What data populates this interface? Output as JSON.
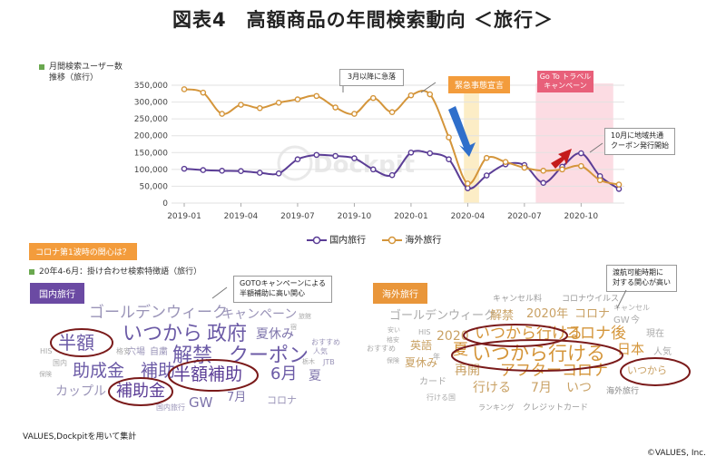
{
  "title": "図表4　高額商品の年間検索動向 ＜旅行＞",
  "chart_data": {
    "type": "line",
    "title": "図表4　高額商品の年間検索動向 ＜旅行＞",
    "ylabel": "月間検索ユーザー数推移（旅行）",
    "ylabel_line1": "月間検索ユーザー数",
    "ylabel_line2": "推移（旅行）",
    "x": [
      "2019-01",
      "2019-02",
      "2019-03",
      "2019-04",
      "2019-05",
      "2019-06",
      "2019-07",
      "2019-08",
      "2019-09",
      "2019-10",
      "2019-11",
      "2019-12",
      "2020-01",
      "2020-02",
      "2020-03",
      "2020-04",
      "2020-05",
      "2020-06",
      "2020-07",
      "2020-08",
      "2020-09",
      "2020-10",
      "2020-11",
      "2020-12"
    ],
    "xticks": [
      "2019-01",
      "2019-04",
      "2019-07",
      "2019-10",
      "2020-01",
      "2020-04",
      "2020-07",
      "2020-10"
    ],
    "yticks": [
      "350,000",
      "300,000",
      "250,000",
      "200,000",
      "150,000",
      "100,000",
      "50,000",
      "0"
    ],
    "ylim": [
      0,
      350000
    ],
    "grid": true,
    "legend_position": "bottom",
    "series": [
      {
        "name": "国内旅行",
        "color": "#5b3d96",
        "values": [
          102000,
          98000,
          96000,
          95000,
          90000,
          88000,
          130000,
          143000,
          140000,
          133000,
          100000,
          83000,
          150000,
          148000,
          130000,
          44000,
          82000,
          115000,
          113000,
          60000,
          108000,
          148000,
          80000,
          42000
        ]
      },
      {
        "name": "海外旅行",
        "color": "#d4953a",
        "values": [
          338000,
          328000,
          265000,
          292000,
          282000,
          298000,
          308000,
          318000,
          284000,
          265000,
          312000,
          270000,
          320000,
          323000,
          195000,
          58000,
          134000,
          122000,
          105000,
          96000,
          100000,
          110000,
          68000,
          55000
        ]
      }
    ],
    "annotations": [
      {
        "text": "3月以降に急落"
      },
      {
        "text": "緊急事態宣言"
      },
      {
        "text": "Go To トラベル キャンペーン",
        "line1": "Go To トラベル",
        "line2": "キャンペーン"
      },
      {
        "text": "10月に地域共通 クーポン発行開始",
        "line1": "10月に地域共通",
        "line2": "クーポン発行開始"
      }
    ]
  },
  "subheading": {
    "corona_question": "コロナ第1波時の関心は？",
    "period_note": "20年4-6月：掛け合わせ検索特徴語（旅行）"
  },
  "domestic_cloud": {
    "label": "国内旅行",
    "note_line1": "GOTOキャンペーンによる",
    "note_line2": "半額補助に高い関心",
    "words": [
      "ゴールデンウィーク",
      "キャンペーン",
      "いつから",
      "政府",
      "夏休み",
      "半額",
      "解禁",
      "クーポン",
      "助成金",
      "補助",
      "半額補助",
      "6月",
      "補助金",
      "GW",
      "7月",
      "カップル",
      "コロナ",
      "国内旅行",
      "HIS",
      "国内",
      "保険",
      "穴場",
      "自粛",
      "旅館",
      "宿",
      "人気",
      "おすすめ",
      "JTB",
      "栃木",
      "夏",
      "格安"
    ]
  },
  "overseas_cloud": {
    "label": "海外旅行",
    "note_line1": "渡航可能時期に",
    "note_line2": "対する関心が高い",
    "words": [
      "キャンセル料",
      "コロナウイルス",
      "キャンセル",
      "ゴールデンウィーク",
      "解禁",
      "2020年",
      "コロナ",
      "GW",
      "今",
      "いつから行ける",
      "コロナ後",
      "現在",
      "2020",
      "HIS",
      "安い",
      "英語",
      "夏",
      "日本",
      "人気",
      "いつから行ける",
      "夏休み",
      "再開",
      "アフターコロナ",
      "いつから",
      "カード",
      "行ける",
      "7月",
      "いつ",
      "行ける国",
      "海外旅行",
      "ランキング",
      "クレジットカード",
      "おすすめ",
      "格安",
      "年",
      "保険"
    ]
  },
  "footer": {
    "source": "VALUES,Dockpitを用いて集計",
    "copyright": "©VALUES, Inc."
  }
}
